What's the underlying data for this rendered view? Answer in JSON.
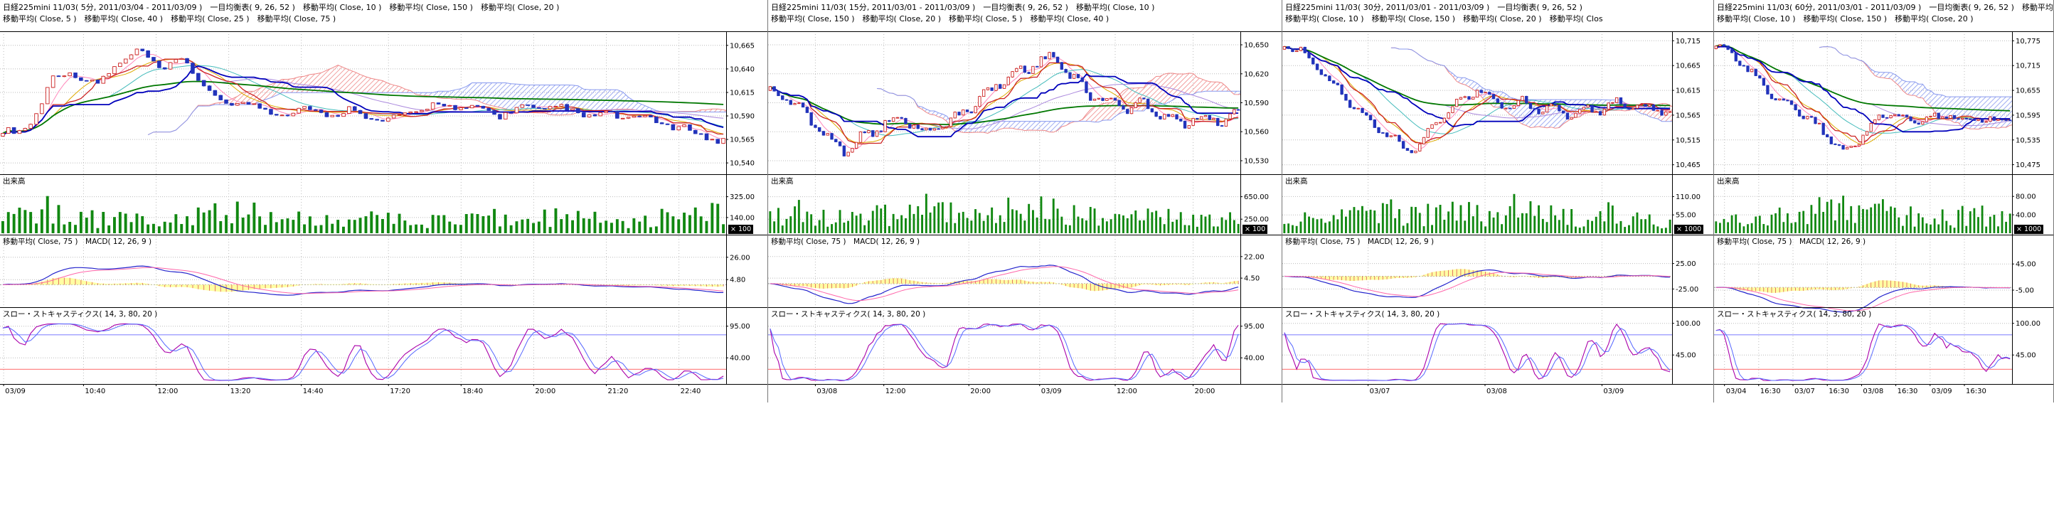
{
  "app": {
    "instrument": "日経225mini 11/03"
  },
  "colors": {
    "up_candle": "#cc2222",
    "down_candle": "#2233bb",
    "tenkan": "#cc2222",
    "kijun": "#0000bb",
    "ma5": "#ff88bb",
    "ma10": "#ddaa00",
    "ma20": "#44bbbb",
    "ma40": "#aa88dd",
    "ma150": "#007700",
    "cloud_up": "#ee8888",
    "cloud_down": "#8899ee",
    "volume": "#118811",
    "macd_line": "#2222cc",
    "macd_signal": "#ff66aa",
    "macd_hist_fill": "#ffff99",
    "macd_hist_stroke": "#dd5555",
    "stoch_k": "#aa00aa",
    "stoch_d": "#5566ff",
    "stoch_hi_line": "#8888ff",
    "stoch_lo_line": "#ff8888",
    "grid": "#bbbbbb",
    "axis": "#000000",
    "badge_bg": "#000000",
    "badge_fg": "#ffffff"
  },
  "chart_data": [
    {
      "instrument": "日経225mini 11/03",
      "interval": "5分",
      "period": "2011/03/04 - 2011/03/09",
      "type": "candlestick",
      "header_line1": "日経225mini 11/03( 5分, 2011/03/04 - 2011/03/09 )　一目均衡表( 9, 26, 52 )　移動平均( Close, 10 )　移動平均( Close, 150 )　移動平均( Close, 20 )",
      "header_line2": "移動平均( Close, 5 )　移動平均( Close, 40 )　移動平均( Close, 25 )　移動平均( Close, 75 )",
      "overlays": [
        "一目均衡表( 9, 26, 52 )",
        "移動平均( Close, 5 )",
        "移動平均( Close, 10 )",
        "移動平均( Close, 20 )",
        "移動平均( Close, 25 )",
        "移動平均( Close, 40 )",
        "移動平均( Close, 75 )",
        "移動平均( Close, 150 )"
      ],
      "bar_count": 130,
      "wiggle": 6,
      "price_axis": {
        "ticks": [
          10665,
          10640,
          10615,
          10590,
          10565,
          10540
        ],
        "range": [
          10528,
          10680
        ]
      },
      "price_anchors": [
        [
          0,
          10572
        ],
        [
          0.02,
          10568
        ],
        [
          0.04,
          10585
        ],
        [
          0.07,
          10632
        ],
        [
          0.1,
          10640
        ],
        [
          0.13,
          10622
        ],
        [
          0.16,
          10648
        ],
        [
          0.19,
          10655
        ],
        [
          0.22,
          10638
        ],
        [
          0.25,
          10648
        ],
        [
          0.28,
          10622
        ],
        [
          0.31,
          10603
        ],
        [
          0.34,
          10610
        ],
        [
          0.37,
          10592
        ],
        [
          0.41,
          10597
        ],
        [
          0.45,
          10588
        ],
        [
          0.49,
          10595
        ],
        [
          0.53,
          10585
        ],
        [
          0.57,
          10598
        ],
        [
          0.61,
          10603
        ],
        [
          0.65,
          10595
        ],
        [
          0.69,
          10590
        ],
        [
          0.73,
          10598
        ],
        [
          0.77,
          10601
        ],
        [
          0.81,
          10594
        ],
        [
          0.85,
          10590
        ],
        [
          0.89,
          10585
        ],
        [
          0.93,
          10577
        ],
        [
          0.97,
          10570
        ],
        [
          1,
          10566
        ]
      ],
      "volume": {
        "label": "出来高",
        "unit": "× 100",
        "ticks": [
          325,
          140
        ],
        "tick_labels": [
          "325.00",
          "140.00"
        ],
        "max": 430,
        "anchors": [
          [
            0,
            0.35
          ],
          [
            0.05,
            0.95
          ],
          [
            0.1,
            0.5
          ],
          [
            0.18,
            0.45
          ],
          [
            0.27,
            0.6
          ],
          [
            0.33,
            0.8
          ],
          [
            0.4,
            0.45
          ],
          [
            0.5,
            0.5
          ],
          [
            0.58,
            0.42
          ],
          [
            0.65,
            0.55
          ],
          [
            0.72,
            0.48
          ],
          [
            0.78,
            0.62
          ],
          [
            0.85,
            0.4
          ],
          [
            0.92,
            0.55
          ],
          [
            1,
            0.65
          ]
        ]
      },
      "macd": {
        "label": "移動平均( Close, 75 )　MACD( 12, 26, 9 )",
        "params": "12, 26, 9",
        "ticks": [
          26,
          4.8
        ],
        "tick_labels": [
          "26.00",
          "4.80"
        ],
        "range": [
          -20,
          36
        ]
      },
      "stoch": {
        "label": "スロー・ストキャスティクス( 14, 3, 80, 20 )",
        "params": "14, 3, 80, 20",
        "upper": 80,
        "lower": 20,
        "ticks": [
          95,
          40
        ],
        "tick_labels": [
          "95.00",
          "40.00"
        ],
        "range": [
          -3,
          107
        ]
      },
      "time_axis": [
        {
          "label": "03/09",
          "x": 0.005
        },
        {
          "label": "10:40",
          "x": 0.115
        },
        {
          "label": "12:00",
          "x": 0.215
        },
        {
          "label": "13:20",
          "x": 0.315
        },
        {
          "label": "14:40",
          "x": 0.415
        },
        {
          "label": "17:20",
          "x": 0.535
        },
        {
          "label": "18:40",
          "x": 0.635
        },
        {
          "label": "20:00",
          "x": 0.735
        },
        {
          "label": "21:20",
          "x": 0.835
        },
        {
          "label": "22:40",
          "x": 0.935
        }
      ]
    },
    {
      "instrument": "日経225mini 11/03",
      "interval": "15分",
      "period": "2011/03/01 - 2011/03/09",
      "type": "candlestick",
      "header_line1": "日経225mini 11/03( 15分, 2011/03/01 - 2011/03/09 )　一目均衡表( 9, 26, 52 )　移動平均( Close, 10 )",
      "header_line2": "移動平均( Close, 150 )　移動平均( Close, 20 )　移動平均( Close, 5 )　移動平均( Close, 40 )",
      "overlays": [
        "一目均衡表( 9, 26, 52 )",
        "移動平均( Close, 5 )",
        "移動平均( Close, 10 )",
        "移動平均( Close, 20 )",
        "移動平均( Close, 40 )",
        "移動平均( Close, 150 )"
      ],
      "bar_count": 115,
      "wiggle": 8,
      "price_axis": {
        "ticks": [
          10650,
          10620,
          10590,
          10560,
          10530
        ],
        "range": [
          10516,
          10664
        ]
      },
      "price_anchors": [
        [
          0,
          10602
        ],
        [
          0.04,
          10592
        ],
        [
          0.08,
          10582
        ],
        [
          0.12,
          10556
        ],
        [
          0.16,
          10544
        ],
        [
          0.2,
          10552
        ],
        [
          0.24,
          10563
        ],
        [
          0.28,
          10572
        ],
        [
          0.32,
          10562
        ],
        [
          0.36,
          10568
        ],
        [
          0.4,
          10578
        ],
        [
          0.44,
          10592
        ],
        [
          0.48,
          10604
        ],
        [
          0.52,
          10616
        ],
        [
          0.56,
          10628
        ],
        [
          0.6,
          10641
        ],
        [
          0.63,
          10630
        ],
        [
          0.66,
          10612
        ],
        [
          0.69,
          10598
        ],
        [
          0.72,
          10588
        ],
        [
          0.76,
          10582
        ],
        [
          0.8,
          10586
        ],
        [
          0.84,
          10578
        ],
        [
          0.88,
          10574
        ],
        [
          0.92,
          10578
        ],
        [
          0.96,
          10572
        ],
        [
          1,
          10576
        ]
      ],
      "volume": {
        "label": "出来高",
        "unit": "× 100",
        "ticks": [
          650,
          250
        ],
        "tick_labels": [
          "650.00",
          "250.00"
        ],
        "max": 860,
        "anchors": [
          [
            0,
            0.55
          ],
          [
            0.06,
            0.8
          ],
          [
            0.12,
            0.5
          ],
          [
            0.2,
            0.55
          ],
          [
            0.28,
            0.65
          ],
          [
            0.35,
            0.9
          ],
          [
            0.42,
            0.6
          ],
          [
            0.5,
            0.75
          ],
          [
            0.58,
            0.95
          ],
          [
            0.64,
            0.7
          ],
          [
            0.72,
            0.6
          ],
          [
            0.8,
            0.55
          ],
          [
            0.88,
            0.5
          ],
          [
            1,
            0.45
          ]
        ]
      },
      "macd": {
        "label": "移動平均( Close, 75 )　MACD( 12, 26, 9 )",
        "params": "12, 26, 9",
        "ticks": [
          22,
          4.5
        ],
        "tick_labels": [
          "22.00",
          "4.50"
        ],
        "range": [
          -18,
          30
        ]
      },
      "stoch": {
        "label": "スロー・ストキャスティクス( 14, 3, 80, 20 )",
        "params": "14, 3, 80, 20",
        "upper": 80,
        "lower": 20,
        "ticks": [
          95,
          40
        ],
        "tick_labels": [
          "95.00",
          "40.00"
        ],
        "range": [
          -3,
          107
        ]
      },
      "time_axis": [
        {
          "label": "03/08",
          "x": 0.1
        },
        {
          "label": "12:00",
          "x": 0.245
        },
        {
          "label": "20:00",
          "x": 0.425
        },
        {
          "label": "03/09",
          "x": 0.575
        },
        {
          "label": "12:00",
          "x": 0.735
        },
        {
          "label": "20:00",
          "x": 0.9
        }
      ]
    },
    {
      "instrument": "日経225mini 11/03",
      "interval": "30分",
      "period": "2011/03/01 - 2011/03/09",
      "type": "candlestick",
      "header_line1": "日経225mini 11/03( 30分, 2011/03/01 - 2011/03/09 )　一目均衡表( 9, 26, 52 )",
      "header_line2": "移動平均( Close, 10 )　移動平均( Close, 150 )　移動平均( Close, 20 )　移動平均( Clos",
      "overlays": [
        "一目均衡表( 9, 26, 52 )",
        "移動平均( Close, 10 )",
        "移動平均( Close, 150 )",
        "移動平均( Close, 20 )"
      ],
      "bar_count": 95,
      "wiggle": 11,
      "price_axis": {
        "ticks": [
          10715,
          10665,
          10615,
          10565,
          10515,
          10465
        ],
        "range": [
          10446,
          10734
        ]
      },
      "price_anchors": [
        [
          0,
          10698
        ],
        [
          0.04,
          10692
        ],
        [
          0.08,
          10668
        ],
        [
          0.12,
          10638
        ],
        [
          0.16,
          10605
        ],
        [
          0.2,
          10568
        ],
        [
          0.24,
          10540
        ],
        [
          0.28,
          10515
        ],
        [
          0.32,
          10487
        ],
        [
          0.35,
          10505
        ],
        [
          0.38,
          10538
        ],
        [
          0.42,
          10572
        ],
        [
          0.46,
          10602
        ],
        [
          0.5,
          10618
        ],
        [
          0.54,
          10595
        ],
        [
          0.58,
          10578
        ],
        [
          0.62,
          10590
        ],
        [
          0.66,
          10570
        ],
        [
          0.7,
          10582
        ],
        [
          0.74,
          10568
        ],
        [
          0.78,
          10586
        ],
        [
          0.82,
          10577
        ],
        [
          0.86,
          10590
        ],
        [
          0.9,
          10583
        ],
        [
          0.95,
          10575
        ],
        [
          1,
          10570
        ]
      ],
      "volume": {
        "label": "出来高",
        "unit": "× 1000",
        "ticks": [
          110,
          55
        ],
        "tick_labels": [
          "110.00",
          "55.00"
        ],
        "max": 145,
        "anchors": [
          [
            0,
            0.35
          ],
          [
            0.08,
            0.5
          ],
          [
            0.16,
            0.6
          ],
          [
            0.24,
            0.85
          ],
          [
            0.3,
            0.7
          ],
          [
            0.38,
            0.6
          ],
          [
            0.46,
            0.75
          ],
          [
            0.54,
            0.55
          ],
          [
            0.6,
            0.95
          ],
          [
            0.68,
            0.6
          ],
          [
            0.76,
            0.5
          ],
          [
            0.84,
            0.65
          ],
          [
            0.92,
            0.55
          ],
          [
            1,
            0.4
          ]
        ]
      },
      "macd": {
        "label": "移動平均( Close, 75 )　MACD( 12, 26, 9 )",
        "params": "12, 26, 9",
        "ticks": [
          25,
          -25
        ],
        "tick_labels": [
          "25.00",
          "-25.00"
        ],
        "range": [
          -58,
          58
        ]
      },
      "stoch": {
        "label": "スロー・ストキャスティクス( 14, 3, 80, 20 )",
        "params": "14, 3, 80, 20",
        "upper": 80,
        "lower": 20,
        "ticks": [
          100,
          45
        ],
        "tick_labels": [
          "100.00",
          "45.00"
        ],
        "range": [
          -3,
          107
        ]
      },
      "time_axis": [
        {
          "label": "03/07",
          "x": 0.22
        },
        {
          "label": "03/08",
          "x": 0.52
        },
        {
          "label": "03/09",
          "x": 0.82
        }
      ]
    },
    {
      "instrument": "日経225mini 11/03",
      "interval": "60分",
      "period": "2011/03/01 - 2011/03/09",
      "type": "candlestick",
      "header_line1": "日経225mini 11/03( 60分, 2011/03/01 - 2011/03/09 )　一目均衡表( 9, 26, 52 )　移動平均( Clos",
      "header_line2": "移動平均( Close, 10 )　移動平均( Close, 150 )　移動平均( Close, 20 )",
      "overlays": [
        "一目均衡表( 9, 26, 52 )",
        "移動平均( Close, 10 )",
        "移動平均( Close, 150 )",
        "移動平均( Close, 20 )"
      ],
      "bar_count": 75,
      "wiggle": 13,
      "price_axis": {
        "ticks": [
          10775,
          10715,
          10655,
          10595,
          10535,
          10475
        ],
        "range": [
          10452,
          10798
        ]
      },
      "price_anchors": [
        [
          0,
          10762
        ],
        [
          0.05,
          10748
        ],
        [
          0.1,
          10712
        ],
        [
          0.15,
          10682
        ],
        [
          0.2,
          10645
        ],
        [
          0.25,
          10618
        ],
        [
          0.3,
          10592
        ],
        [
          0.35,
          10560
        ],
        [
          0.4,
          10522
        ],
        [
          0.44,
          10498
        ],
        [
          0.48,
          10532
        ],
        [
          0.52,
          10568
        ],
        [
          0.56,
          10598
        ],
        [
          0.6,
          10612
        ],
        [
          0.64,
          10588
        ],
        [
          0.68,
          10575
        ],
        [
          0.72,
          10592
        ],
        [
          0.76,
          10580
        ],
        [
          0.8,
          10590
        ],
        [
          0.85,
          10582
        ],
        [
          0.9,
          10592
        ],
        [
          0.95,
          10586
        ],
        [
          1,
          10590
        ]
      ],
      "volume": {
        "label": "出来高",
        "unit": "× 1000",
        "ticks": [
          80,
          40
        ],
        "tick_labels": [
          "80.00",
          "40.00"
        ],
        "max": 105,
        "anchors": [
          [
            0,
            0.35
          ],
          [
            0.08,
            0.5
          ],
          [
            0.16,
            0.55
          ],
          [
            0.24,
            0.7
          ],
          [
            0.32,
            0.85
          ],
          [
            0.4,
            0.95
          ],
          [
            0.48,
            0.6
          ],
          [
            0.56,
            0.75
          ],
          [
            0.64,
            0.55
          ],
          [
            0.72,
            0.6
          ],
          [
            0.8,
            0.5
          ],
          [
            0.88,
            0.65
          ],
          [
            1,
            0.45
          ]
        ]
      },
      "macd": {
        "label": "移動平均( Close, 75 )　MACD( 12, 26, 9 )",
        "params": "12, 26, 9",
        "ticks": [
          45,
          -5
        ],
        "tick_labels": [
          "45.00",
          "-5.00"
        ],
        "range": [
          -35,
          78
        ]
      },
      "stoch": {
        "label": "スロー・ストキャスティクス( 14, 3, 80, 20 )",
        "params": "14, 3, 80, 20",
        "upper": 80,
        "lower": 20,
        "ticks": [
          100,
          45
        ],
        "tick_labels": [
          "100.00",
          "45.00"
        ],
        "range": [
          -3,
          107
        ]
      },
      "time_axis": [
        {
          "label": "03/04",
          "x": 0.035
        },
        {
          "label": "16:30",
          "x": 0.15
        },
        {
          "label": "03/07",
          "x": 0.265
        },
        {
          "label": "16:30",
          "x": 0.38
        },
        {
          "label": "03/08",
          "x": 0.495
        },
        {
          "label": "16:30",
          "x": 0.61
        },
        {
          "label": "03/09",
          "x": 0.725
        },
        {
          "label": "16:30",
          "x": 0.84
        }
      ]
    }
  ]
}
